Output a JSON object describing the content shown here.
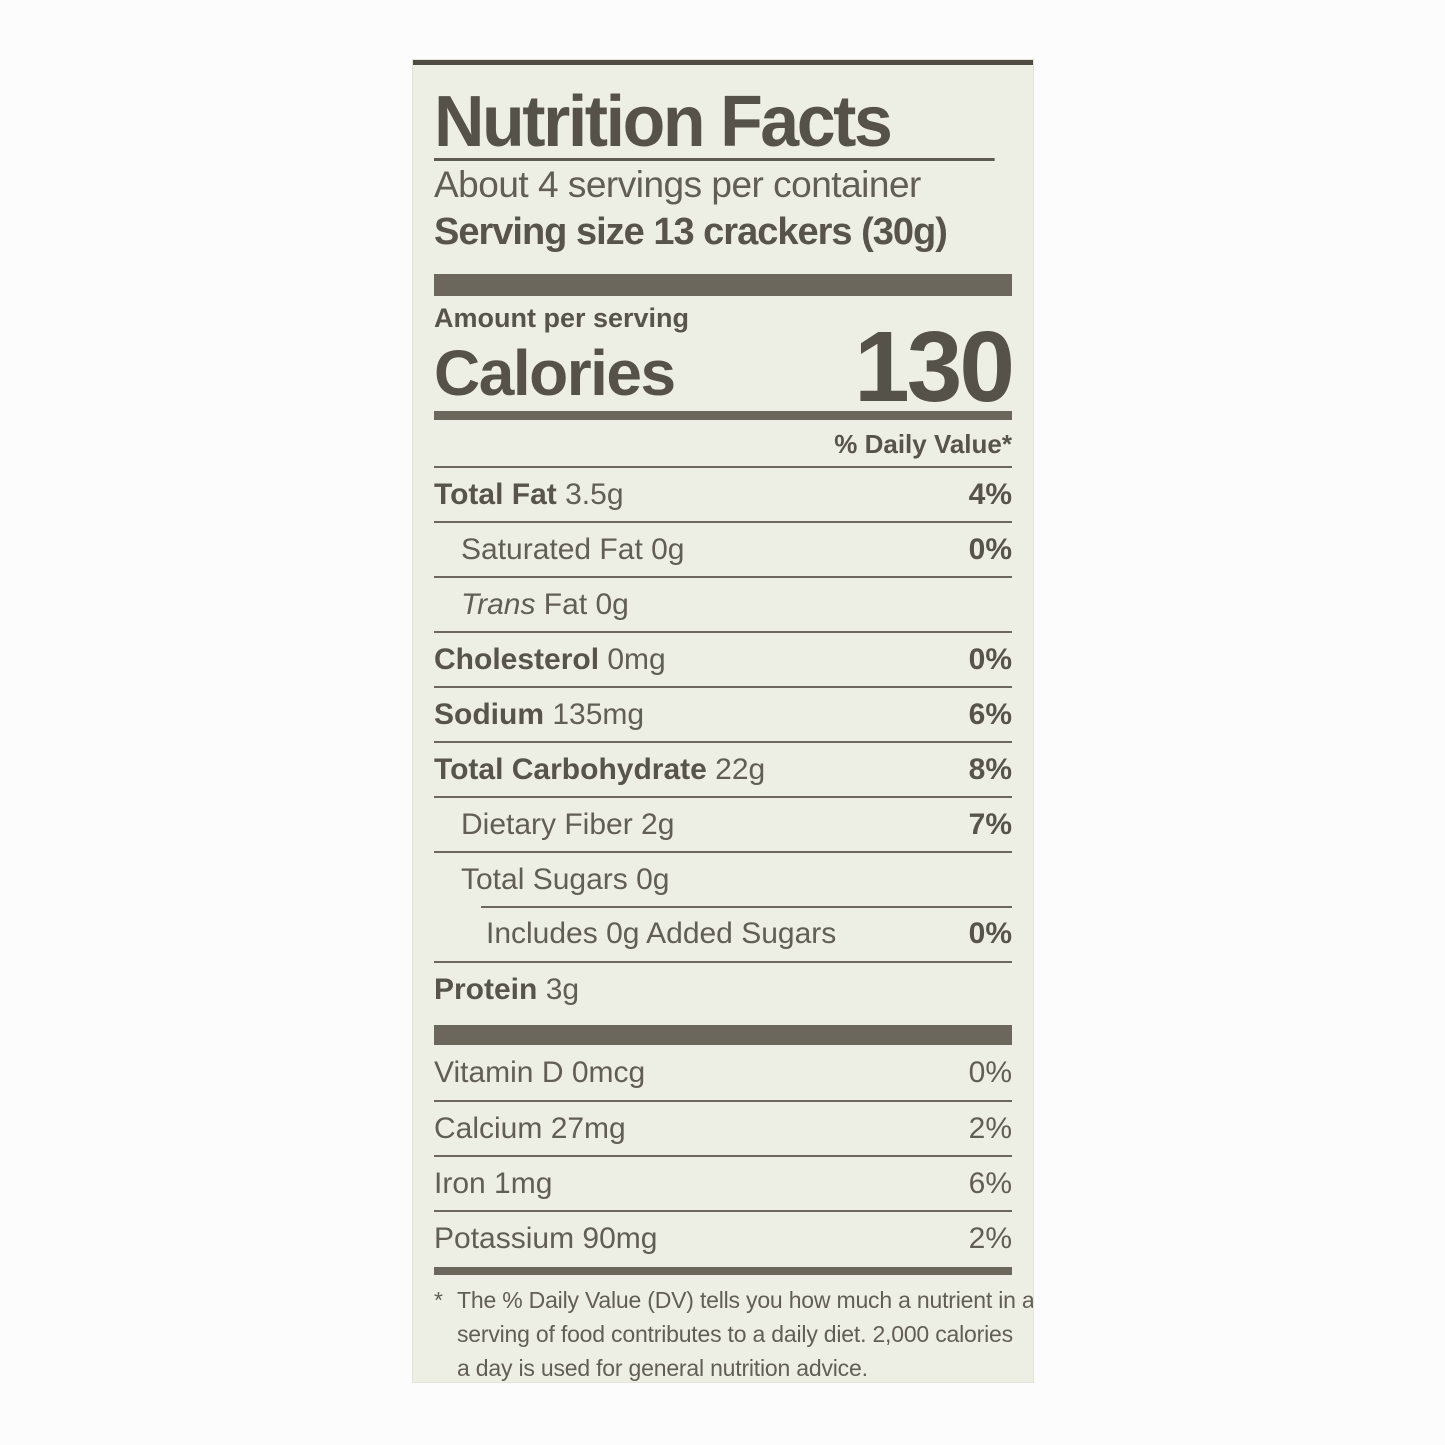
{
  "label": {
    "title": "Nutrition Facts",
    "servings_per_container": "About 4 servings per container",
    "serving_size": "Serving size 13 crackers (30g)",
    "amount_per_serving": "Amount per serving",
    "calories_label": "Calories",
    "calories_value": "130",
    "daily_value_header": "% Daily Value*",
    "colors": {
      "panel_background": "#eeefe4",
      "ink": "#605d54",
      "ink_bold": "#55524a",
      "bar": "#6b675d"
    },
    "nutrients": [
      {
        "name": "Total Fat",
        "amount": " 3.5g",
        "pct": "4%"
      },
      {
        "name": "Saturated Fat",
        "amount": " 0g",
        "pct": "0%"
      },
      {
        "name": "Trans",
        "amount": " Fat 0g",
        "pct": ""
      },
      {
        "name": "Cholesterol",
        "amount": " 0mg",
        "pct": "0%"
      },
      {
        "name": "Sodium",
        "amount": " 135mg",
        "pct": "6%"
      },
      {
        "name": "Total Carbohydrate",
        "amount": " 22g",
        "pct": "8%"
      },
      {
        "name": "Dietary Fiber",
        "amount": " 2g",
        "pct": "7%"
      },
      {
        "name": "Total Sugars",
        "amount": " 0g",
        "pct": ""
      },
      {
        "name": "Includes 0g Added Sugars",
        "amount": "",
        "pct": "0%"
      },
      {
        "name": "Protein",
        "amount": " 3g",
        "pct": ""
      }
    ],
    "vitamins": [
      {
        "name": "Vitamin D 0mcg",
        "pct": "0%"
      },
      {
        "name": "Calcium 27mg",
        "pct": "2%"
      },
      {
        "name": "Iron 1mg",
        "pct": "6%"
      },
      {
        "name": "Potassium 90mg",
        "pct": "2%"
      }
    ],
    "footnote": {
      "marker": "*",
      "lines": [
        "The % Daily Value (DV) tells you how much a nutrient in a",
        "serving of food contributes to a daily diet. 2,000 calories",
        "a day is used for general nutrition advice."
      ]
    }
  }
}
